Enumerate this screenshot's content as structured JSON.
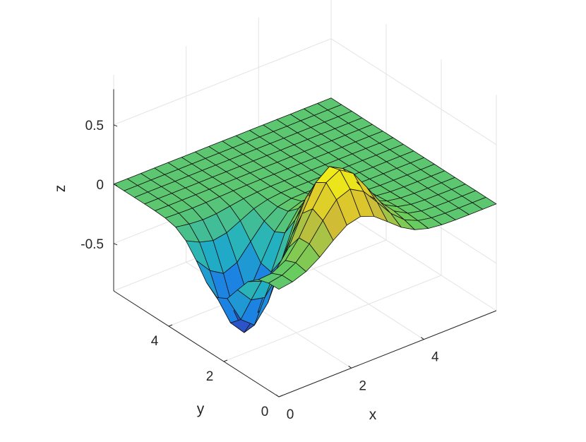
{
  "chart_data": {
    "type": "surface",
    "title": "",
    "xlabel": "x",
    "ylabel": "y",
    "zlabel": "z",
    "xlim": [
      0,
      6
    ],
    "ylim": [
      0,
      6
    ],
    "zlim": [
      -0.9,
      0.8
    ],
    "x_ticks": [
      0,
      2,
      4
    ],
    "y_ticks": [
      0,
      2,
      4
    ],
    "z_ticks": [
      -0.5,
      0,
      0.5
    ],
    "x_tick_labels": [
      "0",
      "2",
      "4"
    ],
    "y_tick_labels": [
      "0",
      "2",
      "4"
    ],
    "z_tick_labels": [
      "-0.5",
      "0",
      "0.5"
    ],
    "grid": true,
    "mesh_lines": 16,
    "colormap": [
      "#3e26a8",
      "#1c7de6",
      "#22b1c2",
      "#6ccd5a",
      "#d4bb35",
      "#f9fb0e"
    ],
    "surface": {
      "description": "z = A1*exp(-((x-x1)^2+(y-y1)^2)/s1) + A2*exp(-((x-x2)^2+(y-y2)^2)/s2)",
      "peak": {
        "x": 2.2,
        "y": 0.9,
        "amplitude": 0.65
      },
      "trough": {
        "x": 0.8,
        "y": 2.2,
        "amplitude": -0.82
      }
    }
  }
}
